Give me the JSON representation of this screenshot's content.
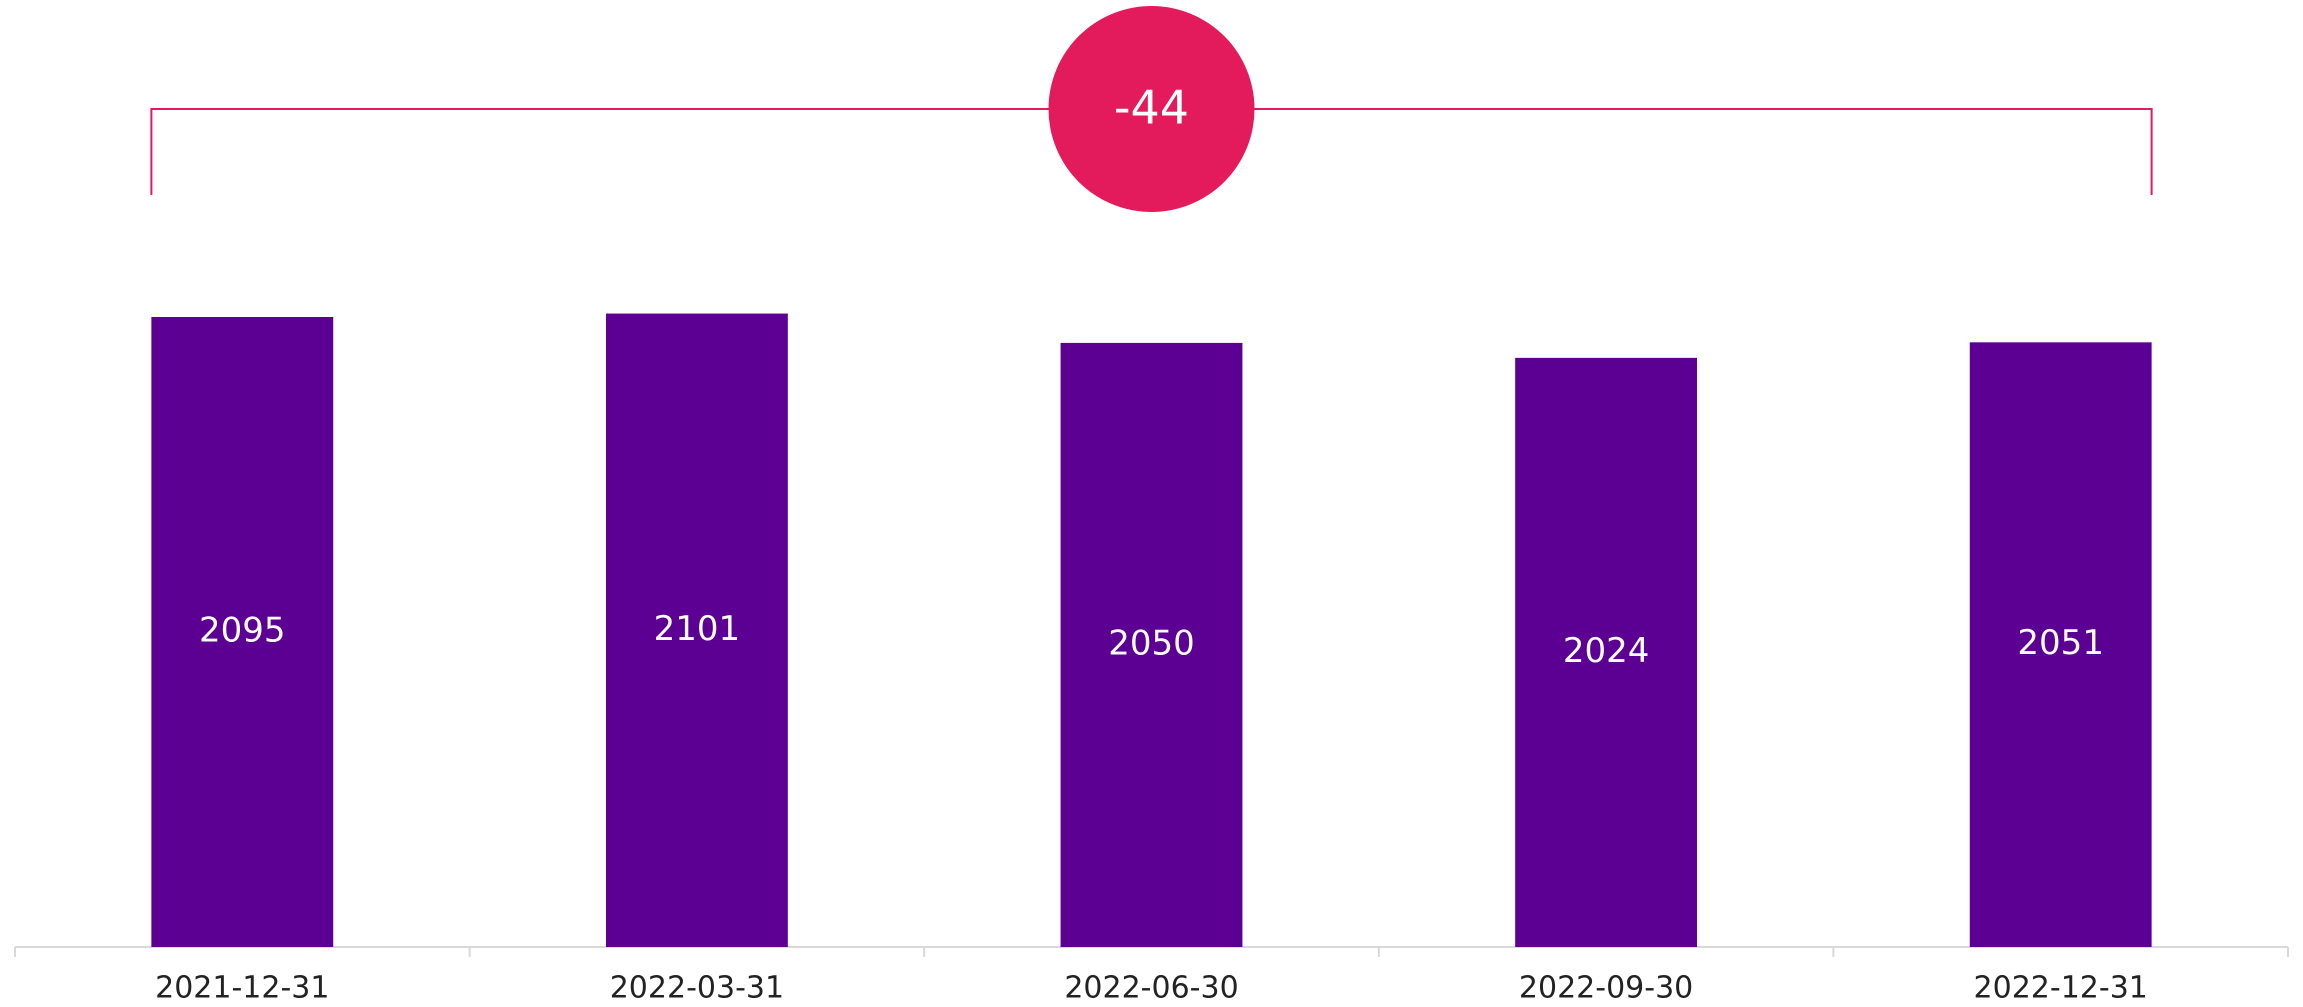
{
  "chart_data": {
    "type": "bar",
    "categories": [
      "2021-12-31",
      "2022-03-31",
      "2022-06-30",
      "2022-09-30",
      "2022-12-31"
    ],
    "values": [
      2095,
      2101,
      2050,
      2024,
      2051
    ],
    "color": "#5c0093",
    "ylim": [
      1000,
      2500
    ],
    "annotation": -44,
    "annotation_color": "#e31b5c"
  }
}
